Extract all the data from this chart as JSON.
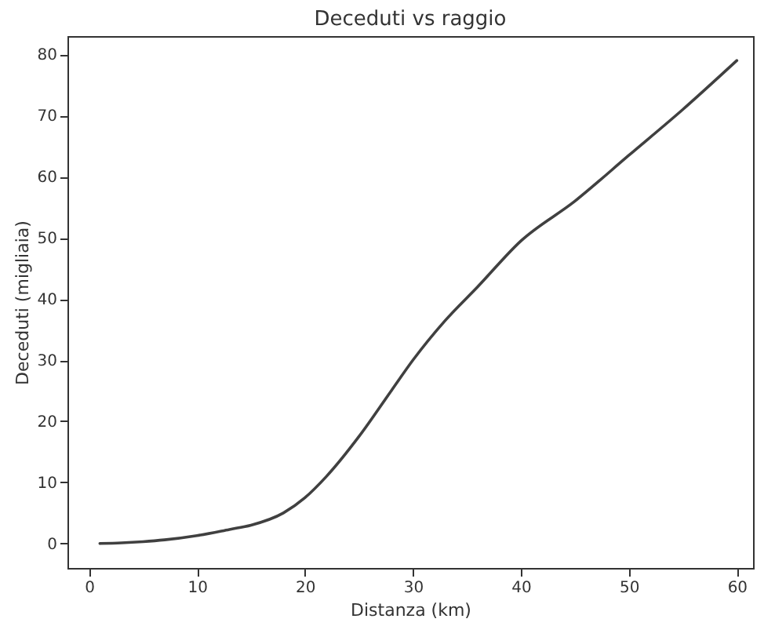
{
  "chart_data": {
    "type": "line",
    "title": "Deceduti vs raggio",
    "xlabel": "Distanza (km)",
    "ylabel": "Deceduti (migliaia)",
    "x": [
      1,
      3,
      5,
      7,
      10,
      13,
      15,
      18,
      20,
      22,
      25,
      28,
      30,
      33,
      36,
      40,
      45,
      50,
      55,
      60
    ],
    "series": [
      {
        "color": "#404040",
        "values": [
          0,
          0.1,
          0.3,
          0.6,
          1.3,
          2.3,
          3,
          5,
          7.5,
          11,
          17.5,
          25,
          30,
          36.5,
          42,
          49.5,
          56,
          63.5,
          71,
          79
        ]
      }
    ],
    "xlim": [
      -2,
      61.5
    ],
    "ylim": [
      -4,
      83
    ],
    "xticks": [
      0,
      10,
      20,
      30,
      40,
      50,
      60
    ],
    "yticks": [
      0,
      10,
      20,
      30,
      40,
      50,
      60,
      70,
      80
    ],
    "grid": false,
    "marker": "none",
    "line_style": "solid"
  }
}
